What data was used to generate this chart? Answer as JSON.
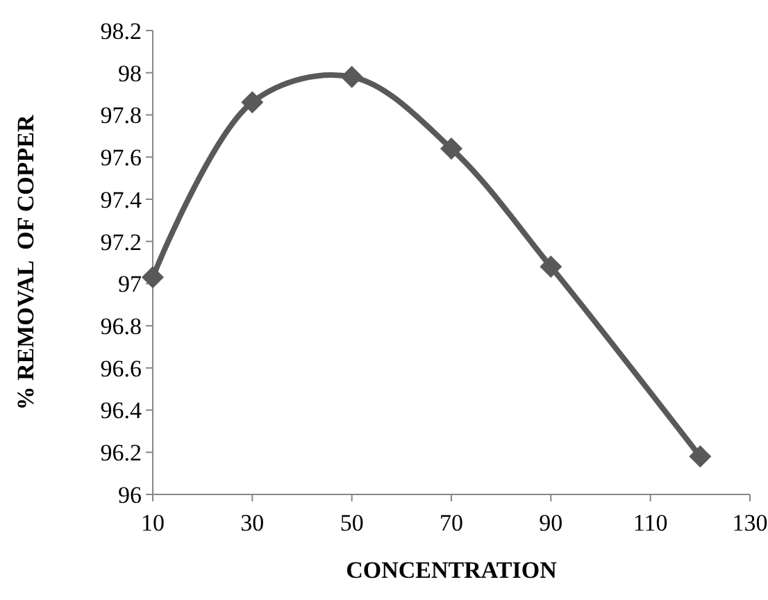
{
  "chart_data": {
    "type": "line",
    "xlabel": "CONCENTRATION",
    "ylabel": "% REMOVAL  OF COPPER",
    "x": [
      10,
      30,
      50,
      70,
      90,
      120
    ],
    "series": [
      {
        "color": "#595959",
        "values": [
          97.03,
          97.86,
          97.98,
          97.64,
          97.08,
          96.18
        ]
      }
    ],
    "xlim": [
      10,
      130
    ],
    "xticks": [
      10,
      30,
      50,
      70,
      90,
      110,
      130
    ],
    "ylim": [
      96,
      98.2
    ],
    "yticks": [
      96,
      96.2,
      96.4,
      96.6,
      96.8,
      97,
      97.2,
      97.4,
      97.6,
      97.8,
      98,
      98.2
    ],
    "marker": "diamond",
    "line_style": "solid"
  }
}
